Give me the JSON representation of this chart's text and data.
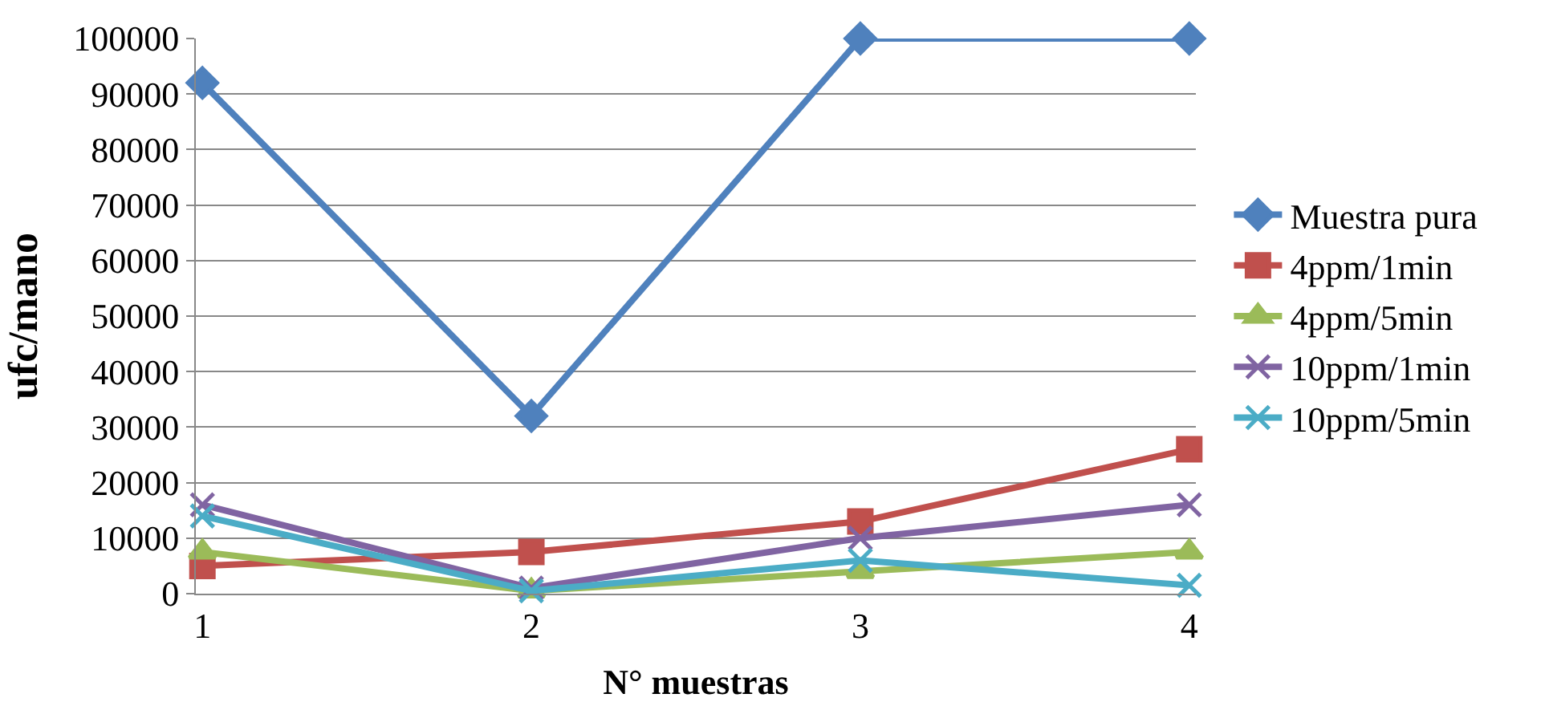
{
  "chart_data": {
    "type": "line",
    "xlabel": "N° muestras",
    "ylabel": "ufc/mano",
    "categories": [
      "1",
      "2",
      "3",
      "4"
    ],
    "ylim": [
      0,
      100000
    ],
    "yticks": [
      0,
      10000,
      20000,
      30000,
      40000,
      50000,
      60000,
      70000,
      80000,
      90000,
      100000
    ],
    "grid": "y",
    "legend": "right",
    "line_style": "solid",
    "series": [
      {
        "name": "Muestra pura",
        "color": "#4f81bd",
        "marker": "diamond",
        "values": [
          92000,
          32000,
          100000,
          100000
        ]
      },
      {
        "name": "4ppm/1min",
        "color": "#c0504d",
        "marker": "square",
        "values": [
          5000,
          7500,
          13000,
          26000
        ]
      },
      {
        "name": "4ppm/5min",
        "color": "#9bbb59",
        "marker": "triangle",
        "values": [
          7500,
          500,
          4000,
          7500
        ]
      },
      {
        "name": "10ppm/1min",
        "color": "#8064a2",
        "marker": "cross",
        "values": [
          16000,
          1000,
          10000,
          16000
        ]
      },
      {
        "name": "10ppm/5min",
        "color": "#4bacc6",
        "marker": "cross",
        "values": [
          14000,
          500,
          6000,
          1500
        ]
      }
    ]
  }
}
